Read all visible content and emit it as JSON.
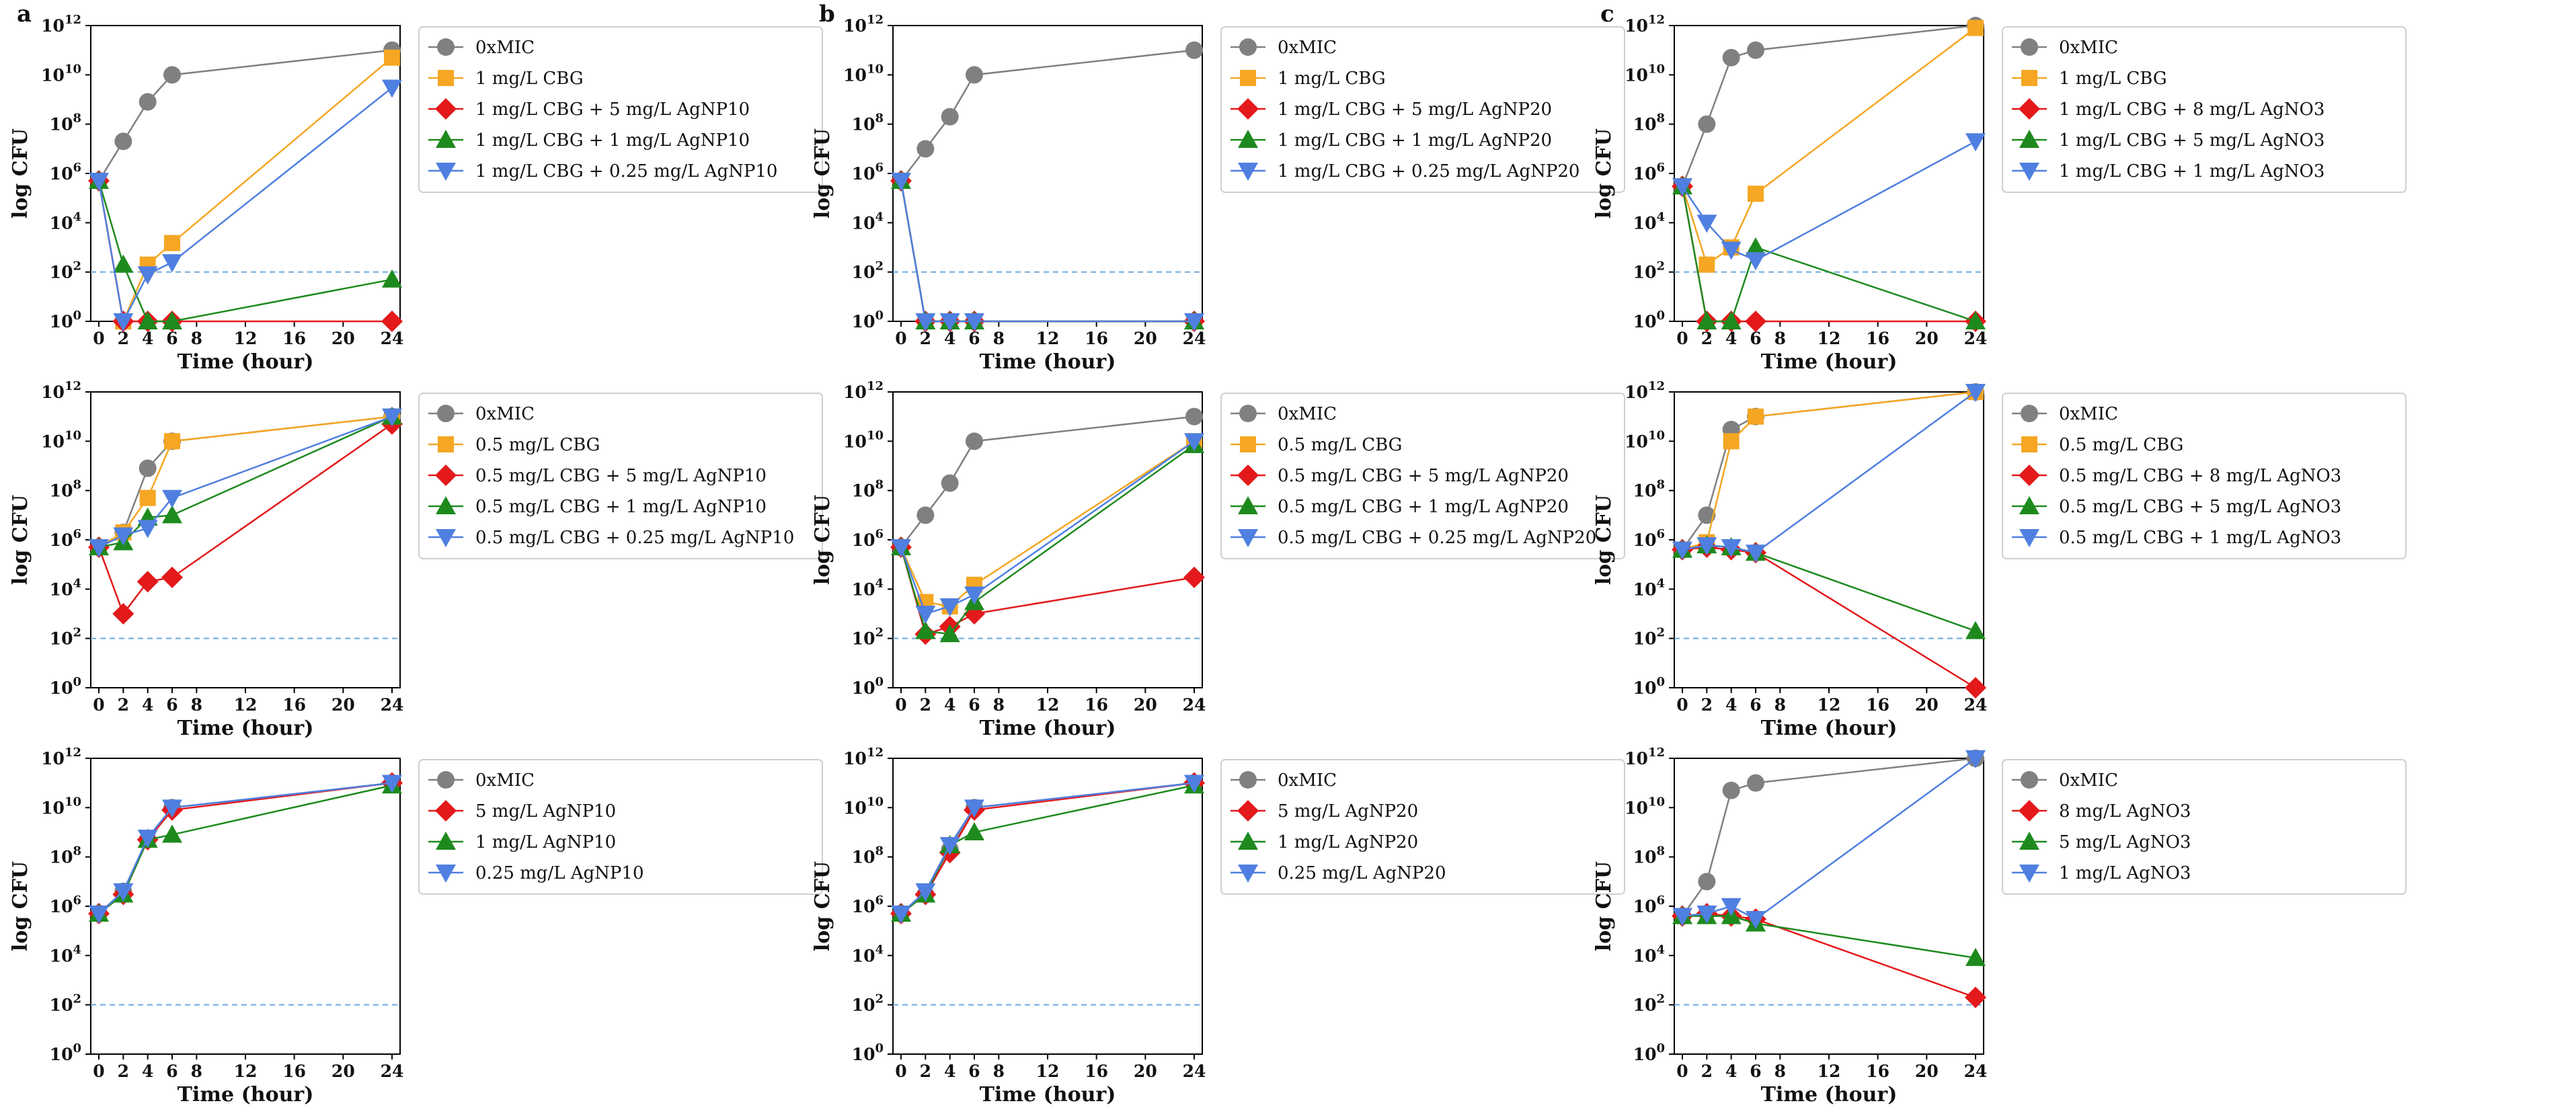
{
  "figure": {
    "detection_limit": 100,
    "series_colors": [
      "#808080",
      "#F5A623",
      "#E3191B",
      "#1E8A1E",
      "#4F7FE0"
    ],
    "series_markers": [
      "circle",
      "square",
      "diamond",
      "triangle-up",
      "triangle-down"
    ],
    "limit_line_color": "#6BA8E0"
  },
  "chart_data": [
    {
      "type": "line",
      "letter": "a",
      "xlabel": "Time (hour)",
      "ylabel": "log CFU",
      "xticks": [
        0,
        2,
        4,
        6,
        8,
        12,
        16,
        20,
        24
      ],
      "ylim": [
        1,
        1000000000000.0
      ],
      "yscale": "log",
      "ytick_labels": [
        "10^0",
        "10^2",
        "10^4",
        "10^6",
        "10^8",
        "10^10",
        "10^12"
      ],
      "legend_position": "right",
      "x": [
        0,
        2,
        4,
        6,
        24
      ],
      "series": [
        {
          "name": "0xMIC",
          "color_index": 0,
          "values": [
            500000.0,
            20000000.0,
            800000000.0,
            10000000000.0,
            100000000000.0
          ]
        },
        {
          "name": "1 mg/L CBG",
          "color_index": 1,
          "values": [
            500000.0,
            1,
            200,
            1500,
            50000000000.0
          ]
        },
        {
          "name": "1 mg/L CBG + 5 mg/L AgNP10",
          "color_index": 2,
          "values": [
            500000.0,
            1,
            1,
            1,
            1
          ]
        },
        {
          "name": "1 mg/L CBG + 1 mg/L AgNP10",
          "color_index": 3,
          "values": [
            500000.0,
            200,
            1,
            1,
            50
          ]
        },
        {
          "name": "1 mg/L CBG + 0.25 mg/L AgNP10",
          "color_index": 4,
          "values": [
            500000.0,
            1,
            80,
            250,
            3000000000.0
          ]
        }
      ]
    },
    {
      "type": "line",
      "letter": "b",
      "xlabel": "Time (hour)",
      "ylabel": "log CFU",
      "xticks": [
        0,
        2,
        4,
        6,
        8,
        12,
        16,
        20,
        24
      ],
      "ylim": [
        1,
        1000000000000.0
      ],
      "yscale": "log",
      "ytick_labels": [
        "10^0",
        "10^2",
        "10^4",
        "10^6",
        "10^8",
        "10^10",
        "10^12"
      ],
      "legend_position": "right",
      "x": [
        0,
        2,
        4,
        6,
        24
      ],
      "series": [
        {
          "name": "0xMIC",
          "color_index": 0,
          "values": [
            500000.0,
            10000000.0,
            200000000.0,
            10000000000.0,
            100000000000.0
          ]
        },
        {
          "name": "1 mg/L CBG",
          "color_index": 1,
          "values": [
            500000.0,
            1,
            1,
            1,
            1
          ]
        },
        {
          "name": "1 mg/L CBG + 5 mg/L AgNP20",
          "color_index": 2,
          "values": [
            500000.0,
            1,
            1,
            1,
            1
          ]
        },
        {
          "name": "1 mg/L CBG + 1 mg/L AgNP20",
          "color_index": 3,
          "values": [
            500000.0,
            1,
            1,
            1,
            1
          ]
        },
        {
          "name": "1 mg/L CBG + 0.25 mg/L AgNP20",
          "color_index": 4,
          "values": [
            500000.0,
            1,
            1,
            1,
            1
          ]
        }
      ]
    },
    {
      "type": "line",
      "letter": "c",
      "xlabel": "Time (hour)",
      "ylabel": "log CFU",
      "xticks": [
        0,
        2,
        4,
        6,
        8,
        12,
        16,
        20,
        24
      ],
      "ylim": [
        1,
        1000000000000.0
      ],
      "yscale": "log",
      "ytick_labels": [
        "10^0",
        "10^2",
        "10^4",
        "10^6",
        "10^8",
        "10^10",
        "10^12"
      ],
      "legend_position": "right",
      "x": [
        0,
        2,
        4,
        6,
        24
      ],
      "series": [
        {
          "name": "0xMIC",
          "color_index": 0,
          "values": [
            300000.0,
            100000000.0,
            50000000000.0,
            100000000000.0,
            1000000000000.0
          ]
        },
        {
          "name": "1 mg/L CBG",
          "color_index": 1,
          "values": [
            300000.0,
            200,
            1000,
            150000.0,
            800000000000.0
          ]
        },
        {
          "name": "1 mg/L CBG + 8 mg/L AgNO3",
          "color_index": 2,
          "values": [
            300000.0,
            1,
            1,
            1,
            1
          ]
        },
        {
          "name": "1 mg/L CBG + 5 mg/L AgNO3",
          "color_index": 3,
          "values": [
            300000.0,
            1,
            1,
            1000,
            1
          ]
        },
        {
          "name": "1 mg/L CBG + 1 mg/L AgNO3",
          "color_index": 4,
          "values": [
            300000.0,
            10000.0,
            800,
            300,
            20000000.0
          ]
        }
      ]
    },
    {
      "type": "line",
      "letter": "",
      "xlabel": "Time (hour)",
      "ylabel": "log CFU",
      "xticks": [
        0,
        2,
        4,
        6,
        8,
        12,
        16,
        20,
        24
      ],
      "ylim": [
        1,
        1000000000000.0
      ],
      "yscale": "log",
      "ytick_labels": [
        "10^0",
        "10^2",
        "10^4",
        "10^6",
        "10^8",
        "10^10",
        "10^12"
      ],
      "legend_position": "right",
      "x": [
        0,
        2,
        4,
        6,
        24
      ],
      "series": [
        {
          "name": "0xMIC",
          "color_index": 0,
          "values": [
            500000.0,
            2000000.0,
            800000000.0,
            10000000000.0,
            100000000000.0
          ]
        },
        {
          "name": "0.5 mg/L CBG",
          "color_index": 1,
          "values": [
            500000.0,
            2000000.0,
            50000000.0,
            10000000000.0,
            100000000000.0
          ]
        },
        {
          "name": "0.5 mg/L CBG + 5 mg/L AgNP10",
          "color_index": 2,
          "values": [
            500000.0,
            1000.0,
            20000.0,
            30000.0,
            50000000000.0
          ]
        },
        {
          "name": "0.5 mg/L CBG + 1 mg/L AgNP10",
          "color_index": 3,
          "values": [
            500000.0,
            800000.0,
            8000000.0,
            10000000.0,
            100000000000.0
          ]
        },
        {
          "name": "0.5 mg/L CBG + 0.25 mg/L AgNP10",
          "color_index": 4,
          "values": [
            500000.0,
            1500000.0,
            3000000.0,
            50000000.0,
            100000000000.0
          ]
        }
      ]
    },
    {
      "type": "line",
      "letter": "",
      "xlabel": "Time (hour)",
      "ylabel": "log CFU",
      "xticks": [
        0,
        2,
        4,
        6,
        8,
        12,
        16,
        20,
        24
      ],
      "ylim": [
        1,
        1000000000000.0
      ],
      "yscale": "log",
      "ytick_labels": [
        "10^0",
        "10^2",
        "10^4",
        "10^6",
        "10^8",
        "10^10",
        "10^12"
      ],
      "legend_position": "right",
      "x": [
        0,
        2,
        4,
        6,
        24
      ],
      "series": [
        {
          "name": "0xMIC",
          "color_index": 0,
          "values": [
            500000.0,
            10000000.0,
            200000000.0,
            10000000000.0,
            100000000000.0
          ]
        },
        {
          "name": "0.5 mg/L CBG",
          "color_index": 1,
          "values": [
            500000.0,
            3000.0,
            2000.0,
            15000.0,
            10000000000.0
          ]
        },
        {
          "name": "0.5 mg/L CBG + 5 mg/L AgNP20",
          "color_index": 2,
          "values": [
            500000.0,
            150,
            300,
            1000.0,
            30000.0
          ]
        },
        {
          "name": "0.5 mg/L CBG + 1 mg/L AgNP20",
          "color_index": 3,
          "values": [
            500000.0,
            200,
            150,
            3000.0,
            7000000000.0
          ]
        },
        {
          "name": "0.5 mg/L CBG + 0.25 mg/L AgNP20",
          "color_index": 4,
          "values": [
            500000.0,
            1000.0,
            2000.0,
            6000.0,
            10000000000.0
          ]
        }
      ]
    },
    {
      "type": "line",
      "letter": "",
      "xlabel": "Time (hour)",
      "ylabel": "log CFU",
      "xticks": [
        0,
        2,
        4,
        6,
        8,
        12,
        16,
        20,
        24
      ],
      "ylim": [
        1,
        1000000000000.0
      ],
      "yscale": "log",
      "ytick_labels": [
        "10^0",
        "10^2",
        "10^4",
        "10^6",
        "10^8",
        "10^10",
        "10^12"
      ],
      "legend_position": "right",
      "x": [
        0,
        2,
        4,
        6,
        24
      ],
      "series": [
        {
          "name": "0xMIC",
          "color_index": 0,
          "values": [
            400000.0,
            10000000.0,
            30000000000.0,
            100000000000.0,
            1000000000000.0
          ]
        },
        {
          "name": "0.5 mg/L CBG",
          "color_index": 1,
          "values": [
            400000.0,
            800000.0,
            10000000000.0,
            100000000000.0,
            1000000000000.0
          ]
        },
        {
          "name": "0.5 mg/L CBG + 8 mg/L AgNO3",
          "color_index": 2,
          "values": [
            400000.0,
            500000.0,
            400000.0,
            300000.0,
            1
          ]
        },
        {
          "name": "0.5 mg/L CBG + 5 mg/L AgNO3",
          "color_index": 3,
          "values": [
            400000.0,
            600000.0,
            500000.0,
            300000.0,
            200
          ]
        },
        {
          "name": "0.5 mg/L CBG + 1 mg/L AgNO3",
          "color_index": 4,
          "values": [
            400000.0,
            600000.0,
            500000.0,
            300000.0,
            1000000000000.0
          ]
        }
      ]
    },
    {
      "type": "line",
      "letter": "",
      "xlabel": "Time (hour)",
      "ylabel": "log CFU",
      "xticks": [
        0,
        2,
        4,
        6,
        8,
        12,
        16,
        20,
        24
      ],
      "ylim": [
        1,
        1000000000000.0
      ],
      "yscale": "log",
      "ytick_labels": [
        "10^0",
        "10^2",
        "10^4",
        "10^6",
        "10^8",
        "10^10",
        "10^12"
      ],
      "legend_position": "right",
      "x": [
        0,
        2,
        4,
        6,
        24
      ],
      "series": [
        {
          "name": "0xMIC",
          "color_index": 0,
          "values": [
            500000.0,
            4000000.0,
            500000000.0,
            10000000000.0,
            100000000000.0
          ]
        },
        {
          "name": "5 mg/L AgNP10",
          "color_index": 2,
          "values": [
            500000.0,
            3000000.0,
            500000000.0,
            8000000000.0,
            100000000000.0
          ]
        },
        {
          "name": "1 mg/L AgNP10",
          "color_index": 3,
          "values": [
            500000.0,
            3000000.0,
            500000000.0,
            800000000.0,
            80000000000.0
          ]
        },
        {
          "name": "0.25 mg/L AgNP10",
          "color_index": 4,
          "values": [
            500000.0,
            4000000.0,
            600000000.0,
            10000000000.0,
            100000000000.0
          ]
        }
      ]
    },
    {
      "type": "line",
      "letter": "",
      "xlabel": "Time (hour)",
      "ylabel": "log CFU",
      "xticks": [
        0,
        2,
        4,
        6,
        8,
        12,
        16,
        20,
        24
      ],
      "ylim": [
        1,
        1000000000000.0
      ],
      "yscale": "log",
      "ytick_labels": [
        "10^0",
        "10^2",
        "10^4",
        "10^6",
        "10^8",
        "10^10",
        "10^12"
      ],
      "legend_position": "right",
      "x": [
        0,
        2,
        4,
        6,
        24
      ],
      "series": [
        {
          "name": "0xMIC",
          "color_index": 0,
          "values": [
            500000.0,
            3000000.0,
            200000000.0,
            10000000000.0,
            100000000000.0
          ]
        },
        {
          "name": "5 mg/L AgNP20",
          "color_index": 2,
          "values": [
            500000.0,
            3000000.0,
            150000000.0,
            8000000000.0,
            100000000000.0
          ]
        },
        {
          "name": "1 mg/L AgNP20",
          "color_index": 3,
          "values": [
            500000.0,
            3000000.0,
            300000000.0,
            1000000000.0,
            80000000000.0
          ]
        },
        {
          "name": "0.25 mg/L AgNP20",
          "color_index": 4,
          "values": [
            500000.0,
            4000000.0,
            300000000.0,
            10000000000.0,
            100000000000.0
          ]
        }
      ]
    },
    {
      "type": "line",
      "letter": "",
      "xlabel": "Time (hour)",
      "ylabel": "log CFU",
      "xticks": [
        0,
        2,
        4,
        6,
        8,
        12,
        16,
        20,
        24
      ],
      "ylim": [
        1,
        1000000000000.0
      ],
      "yscale": "log",
      "ytick_labels": [
        "10^0",
        "10^2",
        "10^4",
        "10^6",
        "10^8",
        "10^10",
        "10^12"
      ],
      "legend_position": "right",
      "x": [
        0,
        2,
        4,
        6,
        24
      ],
      "series": [
        {
          "name": "0xMIC",
          "color_index": 0,
          "values": [
            400000.0,
            10000000.0,
            50000000000.0,
            100000000000.0,
            1000000000000.0
          ]
        },
        {
          "name": "8 mg/L AgNO3",
          "color_index": 2,
          "values": [
            400000.0,
            500000.0,
            400000.0,
            300000.0,
            200
          ]
        },
        {
          "name": "5 mg/L AgNO3",
          "color_index": 3,
          "values": [
            400000.0,
            400000.0,
            400000.0,
            200000.0,
            8000.0
          ]
        },
        {
          "name": "1 mg/L AgNO3",
          "color_index": 4,
          "values": [
            400000.0,
            500000.0,
            1000000.0,
            300000.0,
            1000000000000.0
          ]
        }
      ]
    }
  ]
}
